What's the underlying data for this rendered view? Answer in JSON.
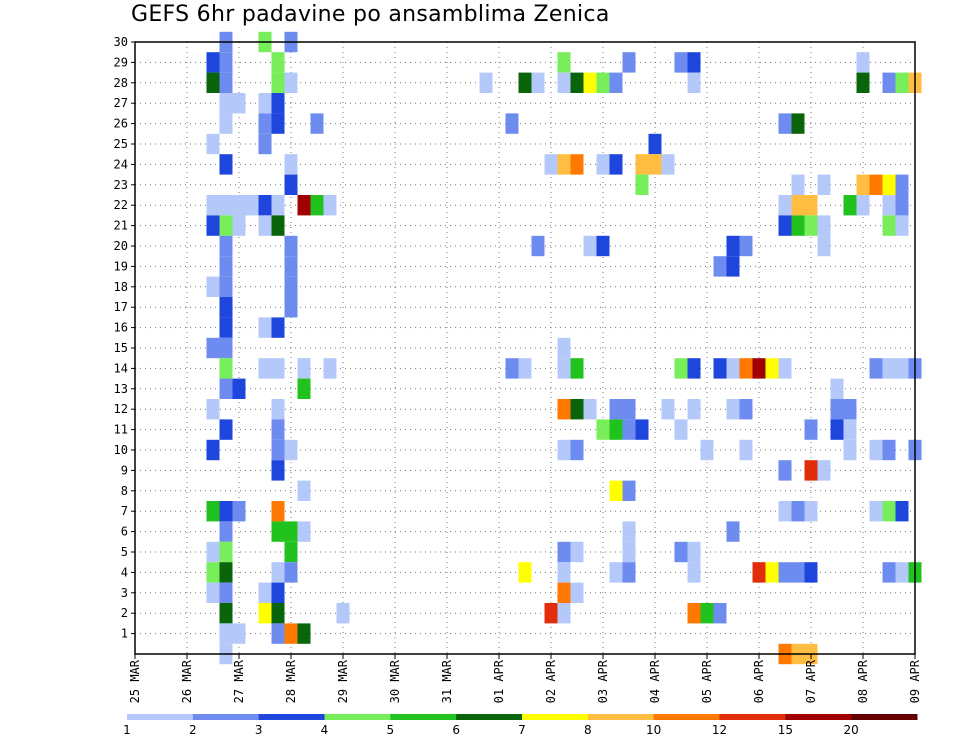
{
  "title": "GEFS 6hr padavine po ansamblima Zenica",
  "chart_data": {
    "type": "heatmap",
    "title": "GEFS 6hr padavine po ansamblima Zenica",
    "xlabel": "",
    "ylabel": "",
    "x_tick_labels": [
      "25 MAR",
      "26 MAR",
      "27 MAR",
      "28 MAR",
      "29 MAR",
      "30 MAR",
      "31 MAR",
      "01 APR",
      "02 APR",
      "03 APR",
      "04 APR",
      "05 APR",
      "06 APR",
      "07 APR",
      "08 APR",
      "09 APR"
    ],
    "y_tick_labels": [
      "1",
      "2",
      "3",
      "4",
      "5",
      "6",
      "7",
      "8",
      "9",
      "10",
      "11",
      "12",
      "13",
      "14",
      "15",
      "16",
      "17",
      "18",
      "19",
      "20",
      "21",
      "22",
      "23",
      "24",
      "25",
      "26",
      "27",
      "28",
      "29",
      "30"
    ],
    "x_units": "6-hour steps from 25 MAR 00Z",
    "x_range": [
      0,
      60
    ],
    "y_range": [
      0,
      30
    ],
    "grid": true,
    "legend": {
      "placement": "bottom",
      "labels": [
        "1",
        "2",
        "3",
        "4",
        "5",
        "6",
        "7",
        "8",
        "10",
        "12",
        "15",
        "20"
      ],
      "colors": [
        "#b4c8fa",
        "#6e8cf0",
        "#1e46dc",
        "#78ee5a",
        "#22c21e",
        "#0a640a",
        "#ffff00",
        "#ffbe41",
        "#ff7800",
        "#e12d0a",
        "#a00000",
        "#640000"
      ]
    },
    "cell_columns": [
      "x_step",
      "member",
      "class"
    ],
    "cells": [
      [
        7,
        30,
        1
      ],
      [
        10,
        30,
        3
      ],
      [
        12,
        30,
        1
      ],
      [
        6,
        29,
        2
      ],
      [
        7,
        29,
        1
      ],
      [
        11,
        29,
        3
      ],
      [
        33,
        29,
        3
      ],
      [
        38,
        29,
        1
      ],
      [
        42,
        29,
        1
      ],
      [
        43,
        29,
        2
      ],
      [
        56,
        29,
        0
      ],
      [
        6,
        28,
        5
      ],
      [
        7,
        28,
        1
      ],
      [
        11,
        28,
        3
      ],
      [
        12,
        28,
        0
      ],
      [
        27,
        28,
        0
      ],
      [
        30,
        28,
        5
      ],
      [
        31,
        28,
        0
      ],
      [
        33,
        28,
        0
      ],
      [
        34,
        28,
        5
      ],
      [
        35,
        28,
        6
      ],
      [
        36,
        28,
        3
      ],
      [
        37,
        28,
        1
      ],
      [
        43,
        28,
        0
      ],
      [
        56,
        28,
        5
      ],
      [
        58,
        28,
        1
      ],
      [
        59,
        28,
        3
      ],
      [
        60,
        28,
        7
      ],
      [
        7,
        27,
        0
      ],
      [
        8,
        27,
        0
      ],
      [
        10,
        27,
        0
      ],
      [
        11,
        27,
        2
      ],
      [
        7,
        26,
        0
      ],
      [
        10,
        26,
        1
      ],
      [
        11,
        26,
        2
      ],
      [
        14,
        26,
        1
      ],
      [
        29,
        26,
        1
      ],
      [
        50,
        26,
        1
      ],
      [
        51,
        26,
        5
      ],
      [
        6,
        25,
        0
      ],
      [
        10,
        25,
        1
      ],
      [
        40,
        25,
        2
      ],
      [
        7,
        24,
        2
      ],
      [
        12,
        24,
        0
      ],
      [
        32,
        24,
        0
      ],
      [
        33,
        24,
        7
      ],
      [
        34,
        24,
        8
      ],
      [
        36,
        24,
        0
      ],
      [
        37,
        24,
        2
      ],
      [
        39,
        24,
        7
      ],
      [
        40,
        24,
        7
      ],
      [
        41,
        24,
        0
      ],
      [
        12,
        23,
        2
      ],
      [
        39,
        23,
        3
      ],
      [
        51,
        23,
        0
      ],
      [
        53,
        23,
        0
      ],
      [
        56,
        23,
        7
      ],
      [
        57,
        23,
        8
      ],
      [
        58,
        23,
        6
      ],
      [
        59,
        23,
        1
      ],
      [
        6,
        22,
        0
      ],
      [
        7,
        22,
        0
      ],
      [
        8,
        22,
        0
      ],
      [
        9,
        22,
        0
      ],
      [
        10,
        22,
        2
      ],
      [
        11,
        22,
        0
      ],
      [
        13,
        22,
        10
      ],
      [
        14,
        22,
        4
      ],
      [
        15,
        22,
        0
      ],
      [
        50,
        22,
        0
      ],
      [
        51,
        22,
        7
      ],
      [
        52,
        22,
        7
      ],
      [
        55,
        22,
        4
      ],
      [
        56,
        22,
        0
      ],
      [
        58,
        22,
        0
      ],
      [
        59,
        22,
        1
      ],
      [
        6,
        21,
        2
      ],
      [
        7,
        21,
        3
      ],
      [
        8,
        21,
        0
      ],
      [
        10,
        21,
        0
      ],
      [
        11,
        21,
        5
      ],
      [
        50,
        21,
        2
      ],
      [
        51,
        21,
        4
      ],
      [
        52,
        21,
        3
      ],
      [
        53,
        21,
        0
      ],
      [
        58,
        21,
        3
      ],
      [
        59,
        21,
        0
      ],
      [
        7,
        20,
        1
      ],
      [
        12,
        20,
        1
      ],
      [
        31,
        20,
        1
      ],
      [
        35,
        20,
        0
      ],
      [
        36,
        20,
        2
      ],
      [
        46,
        20,
        2
      ],
      [
        47,
        20,
        1
      ],
      [
        53,
        20,
        0
      ],
      [
        7,
        19,
        1
      ],
      [
        12,
        19,
        1
      ],
      [
        45,
        19,
        1
      ],
      [
        46,
        19,
        2
      ],
      [
        6,
        18,
        0
      ],
      [
        7,
        18,
        1
      ],
      [
        12,
        18,
        1
      ],
      [
        7,
        17,
        2
      ],
      [
        12,
        17,
        1
      ],
      [
        7,
        16,
        2
      ],
      [
        10,
        16,
        0
      ],
      [
        11,
        16,
        2
      ],
      [
        6,
        15,
        1
      ],
      [
        7,
        15,
        1
      ],
      [
        33,
        15,
        0
      ],
      [
        7,
        14,
        3
      ],
      [
        10,
        14,
        0
      ],
      [
        11,
        14,
        0
      ],
      [
        13,
        14,
        0
      ],
      [
        15,
        14,
        0
      ],
      [
        29,
        14,
        1
      ],
      [
        30,
        14,
        0
      ],
      [
        33,
        14,
        0
      ],
      [
        34,
        14,
        4
      ],
      [
        42,
        14,
        3
      ],
      [
        43,
        14,
        2
      ],
      [
        45,
        14,
        2
      ],
      [
        46,
        14,
        0
      ],
      [
        47,
        14,
        8
      ],
      [
        48,
        14,
        10
      ],
      [
        49,
        14,
        6
      ],
      [
        50,
        14,
        0
      ],
      [
        57,
        14,
        1
      ],
      [
        58,
        14,
        0
      ],
      [
        59,
        14,
        0
      ],
      [
        60,
        14,
        1
      ],
      [
        7,
        13,
        1
      ],
      [
        8,
        13,
        2
      ],
      [
        13,
        13,
        4
      ],
      [
        54,
        13,
        0
      ],
      [
        6,
        12,
        0
      ],
      [
        11,
        12,
        0
      ],
      [
        33,
        12,
        8
      ],
      [
        34,
        12,
        5
      ],
      [
        35,
        12,
        0
      ],
      [
        37,
        12,
        1
      ],
      [
        38,
        12,
        1
      ],
      [
        41,
        12,
        0
      ],
      [
        43,
        12,
        0
      ],
      [
        46,
        12,
        0
      ],
      [
        47,
        12,
        1
      ],
      [
        54,
        12,
        1
      ],
      [
        55,
        12,
        1
      ],
      [
        7,
        11,
        2
      ],
      [
        11,
        11,
        1
      ],
      [
        36,
        11,
        3
      ],
      [
        37,
        11,
        4
      ],
      [
        38,
        11,
        1
      ],
      [
        39,
        11,
        2
      ],
      [
        42,
        11,
        0
      ],
      [
        52,
        11,
        1
      ],
      [
        54,
        11,
        2
      ],
      [
        55,
        11,
        0
      ],
      [
        6,
        10,
        2
      ],
      [
        11,
        10,
        1
      ],
      [
        12,
        10,
        0
      ],
      [
        33,
        10,
        0
      ],
      [
        34,
        10,
        1
      ],
      [
        44,
        10,
        0
      ],
      [
        47,
        10,
        0
      ],
      [
        55,
        10,
        0
      ],
      [
        57,
        10,
        0
      ],
      [
        58,
        10,
        1
      ],
      [
        60,
        10,
        1
      ],
      [
        11,
        9,
        2
      ],
      [
        50,
        9,
        1
      ],
      [
        52,
        9,
        9
      ],
      [
        53,
        9,
        0
      ],
      [
        13,
        8,
        0
      ],
      [
        37,
        8,
        6
      ],
      [
        38,
        8,
        1
      ],
      [
        6,
        7,
        4
      ],
      [
        7,
        7,
        2
      ],
      [
        8,
        7,
        1
      ],
      [
        11,
        7,
        8
      ],
      [
        50,
        7,
        0
      ],
      [
        51,
        7,
        1
      ],
      [
        52,
        7,
        0
      ],
      [
        57,
        7,
        0
      ],
      [
        58,
        7,
        3
      ],
      [
        59,
        7,
        2
      ],
      [
        7,
        6,
        1
      ],
      [
        11,
        6,
        4
      ],
      [
        12,
        6,
        4
      ],
      [
        13,
        6,
        0
      ],
      [
        38,
        6,
        0
      ],
      [
        46,
        6,
        1
      ],
      [
        6,
        5,
        0
      ],
      [
        7,
        5,
        3
      ],
      [
        12,
        5,
        4
      ],
      [
        33,
        5,
        1
      ],
      [
        34,
        5,
        0
      ],
      [
        38,
        5,
        0
      ],
      [
        42,
        5,
        1
      ],
      [
        43,
        5,
        0
      ],
      [
        6,
        4,
        3
      ],
      [
        7,
        4,
        5
      ],
      [
        11,
        4,
        0
      ],
      [
        12,
        4,
        1
      ],
      [
        30,
        4,
        6
      ],
      [
        33,
        4,
        0
      ],
      [
        37,
        4,
        0
      ],
      [
        38,
        4,
        1
      ],
      [
        43,
        4,
        0
      ],
      [
        48,
        4,
        9
      ],
      [
        49,
        4,
        6
      ],
      [
        50,
        4,
        1
      ],
      [
        51,
        4,
        1
      ],
      [
        52,
        4,
        2
      ],
      [
        58,
        4,
        1
      ],
      [
        59,
        4,
        0
      ],
      [
        60,
        4,
        4
      ],
      [
        6,
        3,
        0
      ],
      [
        7,
        3,
        1
      ],
      [
        10,
        3,
        0
      ],
      [
        11,
        3,
        2
      ],
      [
        33,
        3,
        8
      ],
      [
        34,
        3,
        0
      ],
      [
        7,
        2,
        5
      ],
      [
        10,
        2,
        6
      ],
      [
        11,
        2,
        5
      ],
      [
        16,
        2,
        0
      ],
      [
        32,
        2,
        9
      ],
      [
        33,
        2,
        0
      ],
      [
        43,
        2,
        8
      ],
      [
        44,
        2,
        4
      ],
      [
        45,
        2,
        1
      ],
      [
        7,
        1,
        0
      ],
      [
        8,
        1,
        0
      ],
      [
        11,
        1,
        1
      ],
      [
        12,
        1,
        8
      ],
      [
        13,
        1,
        5
      ],
      [
        7,
        0,
        0
      ],
      [
        50,
        0,
        8
      ],
      [
        51,
        0,
        7
      ],
      [
        52,
        0,
        7
      ]
    ]
  }
}
